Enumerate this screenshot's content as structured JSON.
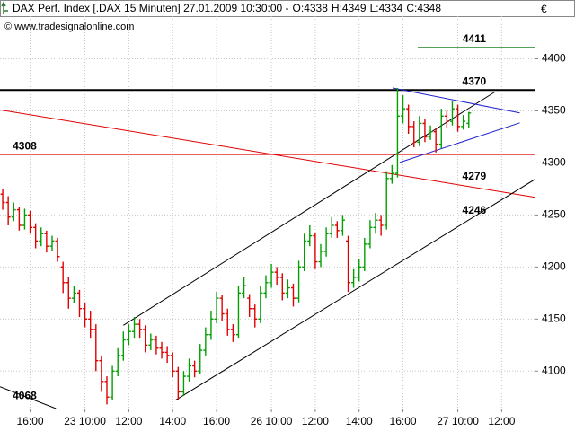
{
  "chart_data": {
    "type": "ohlc",
    "title": "DAX Perf. Index [.DAX 15 Minuten] 27.01.2009 10:30:00 -",
    "quote": [
      {
        "text": "O:4338",
        "color": "#e00000"
      },
      {
        "text": "H:4349",
        "color": "#000000"
      },
      {
        "text": "L:4334",
        "color": "#000000"
      },
      {
        "text": "C:4348",
        "color": "#00a000"
      }
    ],
    "watermark": "© www.tradesignalonline.com",
    "currency": "€",
    "up_color": "#00a000",
    "down_color": "#e00000",
    "grid": true,
    "ylim": [
      4064,
      4441
    ],
    "yticks": [
      4100,
      4150,
      4200,
      4250,
      4300,
      4350,
      4400
    ],
    "xlim": [
      -0.5,
      97
    ],
    "xticks": [
      {
        "value": 5,
        "label": "16:00"
      },
      {
        "value": 15,
        "label": "23 10:00"
      },
      {
        "value": 23,
        "label": "12:00"
      },
      {
        "value": 31,
        "label": "14:00"
      },
      {
        "value": 39,
        "label": "16:00"
      },
      {
        "value": 49,
        "label": "26 10:00"
      },
      {
        "value": 57,
        "label": "12:00"
      },
      {
        "value": 65,
        "label": "14:00"
      },
      {
        "value": 73,
        "label": "16:00"
      },
      {
        "value": 83,
        "label": "27 10:00"
      },
      {
        "value": 91,
        "label": "12:00"
      }
    ],
    "ohlc": [
      [
        4270,
        4275,
        4255,
        4262
      ],
      [
        4262,
        4268,
        4240,
        4248
      ],
      [
        4248,
        4262,
        4244,
        4255
      ],
      [
        4255,
        4258,
        4235,
        4240
      ],
      [
        4240,
        4256,
        4236,
        4250
      ],
      [
        4250,
        4254,
        4232,
        4238
      ],
      [
        4238,
        4242,
        4218,
        4225
      ],
      [
        4225,
        4238,
        4220,
        4232
      ],
      [
        4232,
        4235,
        4214,
        4220
      ],
      [
        4220,
        4230,
        4215,
        4225
      ],
      [
        4225,
        4228,
        4205,
        4210
      ],
      [
        4200,
        4205,
        4175,
        4185
      ],
      [
        4185,
        4190,
        4160,
        4170
      ],
      [
        4170,
        4182,
        4165,
        4175
      ],
      [
        4175,
        4178,
        4152,
        4160
      ],
      [
        4160,
        4165,
        4142,
        4150
      ],
      [
        4150,
        4158,
        4132,
        4140
      ],
      [
        4140,
        4145,
        4100,
        4110
      ],
      [
        4110,
        4115,
        4080,
        4090
      ],
      [
        4090,
        4095,
        4068,
        4075
      ],
      [
        4075,
        4105,
        4072,
        4100
      ],
      [
        4100,
        4122,
        4095,
        4115
      ],
      [
        4115,
        4138,
        4110,
        4130
      ],
      [
        4130,
        4145,
        4125,
        4138
      ],
      [
        4138,
        4152,
        4132,
        4145
      ],
      [
        4145,
        4150,
        4132,
        4140
      ],
      [
        4140,
        4144,
        4118,
        4125
      ],
      [
        4125,
        4136,
        4120,
        4130
      ],
      [
        4130,
        4134,
        4116,
        4122
      ],
      [
        4122,
        4128,
        4112,
        4118
      ],
      [
        4118,
        4124,
        4108,
        4115
      ],
      [
        4115,
        4118,
        4094,
        4100
      ],
      [
        4100,
        4104,
        4072,
        4080
      ],
      [
        4080,
        4100,
        4076,
        4095
      ],
      [
        4095,
        4112,
        4090,
        4105
      ],
      [
        4105,
        4110,
        4094,
        4100
      ],
      [
        4100,
        4126,
        4097,
        4120
      ],
      [
        4120,
        4142,
        4115,
        4135
      ],
      [
        4135,
        4158,
        4130,
        4150
      ],
      [
        4150,
        4176,
        4146,
        4170
      ],
      [
        4170,
        4173,
        4148,
        4155
      ],
      [
        4155,
        4160,
        4134,
        4140
      ],
      [
        4140,
        4145,
        4128,
        4135
      ],
      [
        4135,
        4182,
        4132,
        4175
      ],
      [
        4175,
        4190,
        4170,
        4182
      ],
      [
        4170,
        4174,
        4152,
        4160
      ],
      [
        4160,
        4164,
        4142,
        4150
      ],
      [
        4150,
        4182,
        4146,
        4175
      ],
      [
        4175,
        4192,
        4170,
        4185
      ],
      [
        4185,
        4203,
        4180,
        4195
      ],
      [
        4195,
        4200,
        4183,
        4190
      ],
      [
        4190,
        4194,
        4168,
        4175
      ],
      [
        4175,
        4188,
        4170,
        4180
      ],
      [
        4180,
        4184,
        4162,
        4170
      ],
      [
        4170,
        4206,
        4166,
        4200
      ],
      [
        4200,
        4232,
        4196,
        4225
      ],
      [
        4225,
        4240,
        4220,
        4230
      ],
      [
        4230,
        4233,
        4198,
        4205
      ],
      [
        4205,
        4222,
        4200,
        4215
      ],
      [
        4215,
        4238,
        4210,
        4232
      ],
      [
        4232,
        4248,
        4228,
        4240
      ],
      [
        4240,
        4244,
        4228,
        4235
      ],
      [
        4235,
        4250,
        4230,
        4245
      ],
      [
        4225,
        4230,
        4176,
        4185
      ],
      [
        4185,
        4198,
        4180,
        4190
      ],
      [
        4190,
        4208,
        4186,
        4200
      ],
      [
        4200,
        4228,
        4196,
        4222
      ],
      [
        4222,
        4245,
        4218,
        4238
      ],
      [
        4238,
        4252,
        4232,
        4245
      ],
      [
        4245,
        4250,
        4230,
        4240
      ],
      [
        4240,
        4292,
        4236,
        4285
      ],
      [
        4285,
        4298,
        4280,
        4290
      ],
      [
        4290,
        4372,
        4286,
        4345
      ],
      [
        4345,
        4365,
        4338,
        4352
      ],
      [
        4352,
        4356,
        4328,
        4335
      ],
      [
        4335,
        4340,
        4315,
        4320
      ],
      [
        4320,
        4345,
        4316,
        4338
      ],
      [
        4338,
        4342,
        4320,
        4325
      ],
      [
        4325,
        4336,
        4322,
        4330
      ],
      [
        4330,
        4334,
        4310,
        4318
      ],
      [
        4318,
        4352,
        4314,
        4345
      ],
      [
        4345,
        4350,
        4333,
        4340
      ],
      [
        4340,
        4360,
        4336,
        4352
      ],
      [
        4352,
        4356,
        4330,
        4335
      ],
      [
        4335,
        4346,
        4332,
        4340
      ],
      [
        4338,
        4349,
        4334,
        4348
      ]
    ],
    "lines": [
      {
        "x": [
          -0.5,
          97
        ],
        "y": [
          4370,
          4370
        ],
        "color": "#000000",
        "width": 2
      },
      {
        "x": [
          -0.5,
          97
        ],
        "y": [
          4308,
          4308
        ],
        "color": "#e00000",
        "width": 1
      },
      {
        "x": [
          75.7,
          97
        ],
        "y": [
          4411,
          4411
        ],
        "color": "#208020",
        "width": 1
      },
      {
        "x": [
          -0.5,
          97
        ],
        "y": [
          4351,
          4267
        ],
        "color": "#e00000",
        "width": 1
      },
      {
        "x": [
          22,
          89.7
        ],
        "y": [
          4144,
          4368
        ],
        "color": "#000000",
        "width": 1
      },
      {
        "x": [
          31.5,
          97
        ],
        "y": [
          4072,
          4284
        ],
        "color": "#000000",
        "width": 1
      },
      {
        "x": [
          71.1,
          94.3
        ],
        "y": [
          4372,
          4348
        ],
        "color": "#2020d0",
        "width": 1
      },
      {
        "x": [
          72.4,
          94.3
        ],
        "y": [
          4300.5,
          4338.5
        ],
        "color": "#2020d0",
        "width": 1
      },
      {
        "x": [
          -0.5,
          9.7
        ],
        "y": [
          4085,
          4064
        ],
        "color": "#000000",
        "width": 1
      }
    ],
    "labels": [
      {
        "value": 4411,
        "x": 86,
        "color": "#000000"
      },
      {
        "value": 4370,
        "x": 86,
        "color": "#000000"
      },
      {
        "value": 4308,
        "x": 4,
        "color": "#e00000"
      },
      {
        "value": 4279,
        "x": 86,
        "color": "#e00000"
      },
      {
        "value": 4246,
        "x": 86,
        "color": "#000000"
      },
      {
        "value": 4068,
        "x": 4,
        "color": "#000000"
      }
    ]
  }
}
